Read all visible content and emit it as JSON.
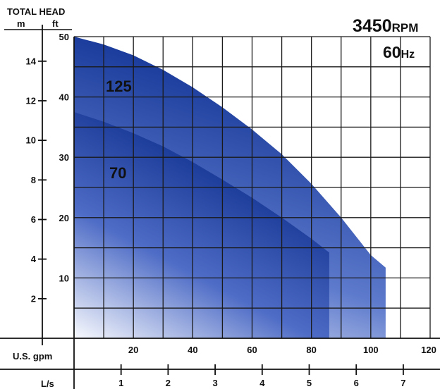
{
  "chart_data": {
    "type": "area",
    "title": "TOTAL HEAD",
    "speed_label": "3450RPM",
    "speed_value": "3450",
    "speed_unit": "RPM",
    "frequency_label": "60Hz",
    "frequency_value": "60",
    "frequency_unit": "Hz",
    "y_axes": [
      {
        "unit": "m",
        "ticks": [
          2,
          4,
          6,
          8,
          10,
          12,
          14
        ]
      },
      {
        "unit": "ft",
        "ticks": [
          10,
          20,
          30,
          40,
          50
        ],
        "range": [
          0,
          50
        ]
      }
    ],
    "x_axes": [
      {
        "unit": "U.S. gpm",
        "ticks": [
          20,
          40,
          60,
          80,
          100,
          120
        ],
        "range": [
          0,
          120
        ]
      },
      {
        "unit": "L/s",
        "ticks": [
          1,
          2,
          3,
          4,
          5,
          6,
          7
        ]
      }
    ],
    "grid": true,
    "series": [
      {
        "name": "125",
        "x": [
          0,
          10,
          20,
          30,
          40,
          50,
          60,
          70,
          80,
          90,
          100,
          105,
          105
        ],
        "y": [
          50,
          48.7,
          46.9,
          44.5,
          41.6,
          38.3,
          34.6,
          30.5,
          25.6,
          20,
          13.8,
          11.7,
          0
        ]
      },
      {
        "name": "70",
        "x": [
          0,
          10,
          20,
          30,
          40,
          50,
          60,
          70,
          80,
          86,
          86
        ],
        "y": [
          37.5,
          35.9,
          34,
          31.8,
          29.2,
          26.3,
          23.3,
          20,
          16.5,
          14.2,
          0
        ]
      }
    ],
    "colors": {
      "dark": "#1b3c9c",
      "mid": "#3d5fc4",
      "light": "#eef1fb",
      "grid": "#1a1a1a"
    }
  }
}
